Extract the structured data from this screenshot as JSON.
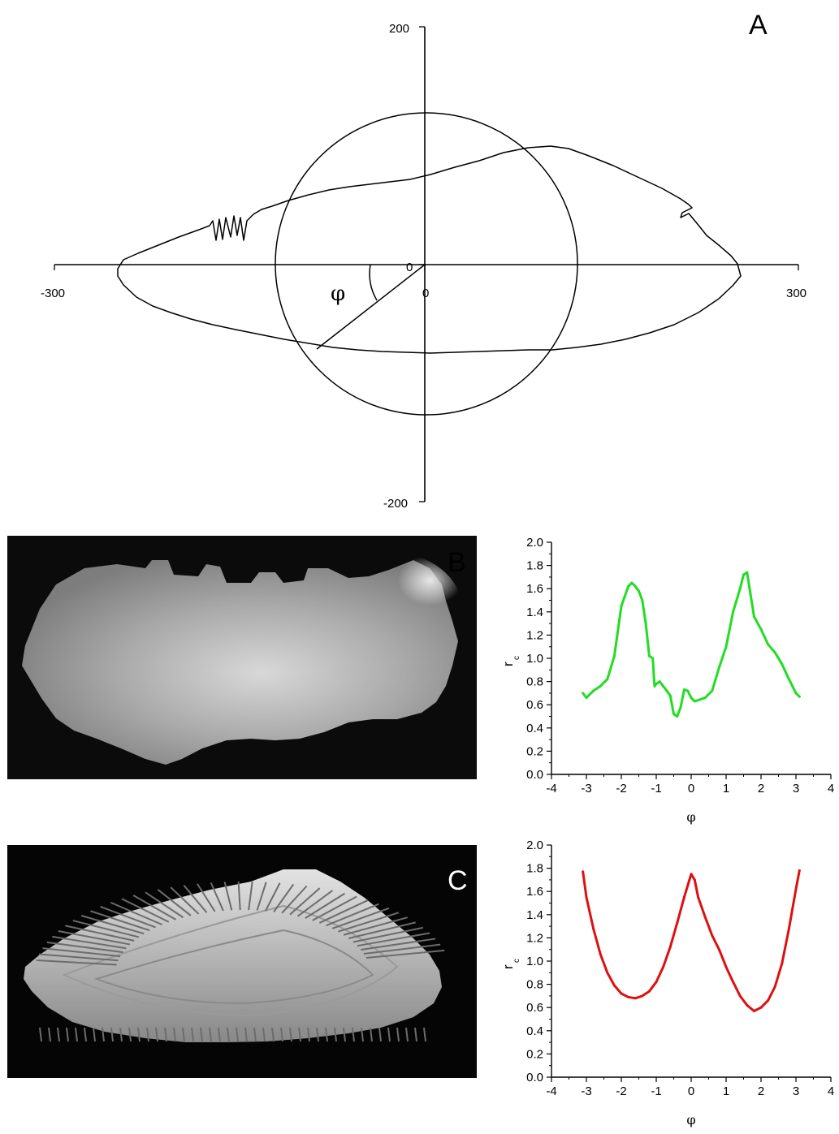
{
  "panels": {
    "a": {
      "label": "A"
    },
    "b": {
      "label": "B"
    },
    "c": {
      "label": "C"
    }
  },
  "colors": {
    "outline": "#000000",
    "series_b": "#22dd22",
    "series_c": "#dd1111",
    "photo_bg": "#0a0a0a"
  },
  "chart_data": [
    {
      "id": "A",
      "type": "line",
      "description_visible": "otolith contour with reference circle, polar angle phi marked",
      "xlim": [
        -300,
        300
      ],
      "ylim": [
        -200,
        200
      ],
      "x_ticklabels": [
        "-300",
        "0",
        "300"
      ],
      "y_ticklabels": [
        "200",
        "0",
        "-200"
      ],
      "annotation": "φ",
      "circle_radius": 122,
      "angle_phi_line_end": [
        -88,
        -68
      ]
    },
    {
      "id": "B",
      "type": "line",
      "xlabel": "φ",
      "ylabel": "r",
      "ylabel_sub": "c",
      "xlim": [
        -4,
        4
      ],
      "ylim": [
        0.0,
        2.0
      ],
      "x_ticks": [
        "-4",
        "-3",
        "-2",
        "-1",
        "0",
        "1",
        "2",
        "3",
        "4"
      ],
      "y_ticks": [
        "0.0",
        "0.2",
        "0.4",
        "0.6",
        "0.8",
        "1.0",
        "1.2",
        "1.4",
        "1.6",
        "1.8",
        "2.0"
      ],
      "x": [
        -3.1,
        -3.0,
        -2.8,
        -2.6,
        -2.4,
        -2.2,
        -2.0,
        -1.8,
        -1.7,
        -1.6,
        -1.5,
        -1.4,
        -1.3,
        -1.2,
        -1.1,
        -1.05,
        -1.0,
        -0.9,
        -0.8,
        -0.7,
        -0.6,
        -0.5,
        -0.4,
        -0.3,
        -0.2,
        -0.1,
        0.0,
        0.1,
        0.2,
        0.4,
        0.6,
        0.8,
        1.0,
        1.2,
        1.4,
        1.5,
        1.6,
        1.7,
        1.8,
        2.0,
        2.2,
        2.4,
        2.6,
        2.8,
        3.0,
        3.1
      ],
      "y": [
        0.7,
        0.66,
        0.72,
        0.76,
        0.82,
        1.02,
        1.45,
        1.62,
        1.65,
        1.62,
        1.58,
        1.5,
        1.3,
        1.02,
        1.0,
        0.76,
        0.78,
        0.8,
        0.76,
        0.72,
        0.68,
        0.52,
        0.5,
        0.58,
        0.73,
        0.72,
        0.66,
        0.63,
        0.64,
        0.66,
        0.72,
        0.92,
        1.1,
        1.4,
        1.6,
        1.72,
        1.74,
        1.55,
        1.36,
        1.25,
        1.12,
        1.05,
        0.95,
        0.82,
        0.7,
        0.67
      ]
    },
    {
      "id": "C",
      "type": "line",
      "xlabel": "φ",
      "ylabel": "r",
      "ylabel_sub": "c",
      "xlim": [
        -4,
        4
      ],
      "ylim": [
        0.0,
        2.0
      ],
      "x_ticks": [
        "-4",
        "-3",
        "-2",
        "-1",
        "0",
        "1",
        "2",
        "3",
        "4"
      ],
      "y_ticks": [
        "0.0",
        "0.2",
        "0.4",
        "0.6",
        "0.8",
        "1.0",
        "1.2",
        "1.4",
        "1.6",
        "1.8",
        "2.0"
      ],
      "x": [
        -3.1,
        -3.0,
        -2.8,
        -2.6,
        -2.4,
        -2.2,
        -2.0,
        -1.8,
        -1.6,
        -1.4,
        -1.2,
        -1.0,
        -0.8,
        -0.6,
        -0.4,
        -0.2,
        0.0,
        0.1,
        0.2,
        0.4,
        0.6,
        0.8,
        1.0,
        1.2,
        1.4,
        1.6,
        1.8,
        2.0,
        2.2,
        2.4,
        2.6,
        2.8,
        3.0,
        3.1
      ],
      "y": [
        1.77,
        1.55,
        1.28,
        1.06,
        0.9,
        0.79,
        0.72,
        0.69,
        0.68,
        0.7,
        0.74,
        0.82,
        0.95,
        1.12,
        1.33,
        1.55,
        1.75,
        1.7,
        1.55,
        1.38,
        1.22,
        1.1,
        0.95,
        0.82,
        0.7,
        0.62,
        0.57,
        0.6,
        0.66,
        0.78,
        0.98,
        1.28,
        1.62,
        1.78
      ]
    }
  ]
}
